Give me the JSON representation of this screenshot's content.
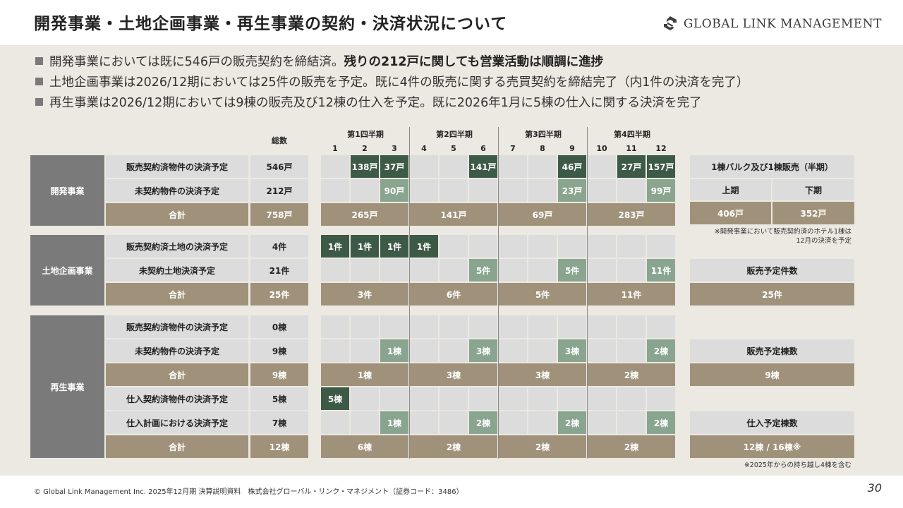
{
  "header": {
    "title": "開発事業・土地企画事業・再生事業の契約・決済状況について",
    "logo_text": "GLOBAL LINK MANAGEMENT"
  },
  "bullets": [
    {
      "normal": "開発事業においては既に546戸の販売契約を締結済。",
      "bold": "残りの212戸に関しても営業活動は順調に進捗"
    },
    {
      "normal": "土地企画事業は2026/12期においては25件の販売を予定。既に4件の販売に関する売買契約を締結完了（内1件の決済を完了）",
      "bold": ""
    },
    {
      "normal": "再生事業は2026/12期においては9棟の販売及び12棟の仕入を予定。既に2026年1月に5棟の仕入に関する決済を完了",
      "bold": ""
    }
  ],
  "table_header": {
    "total_label": "総数",
    "quarters": [
      "第1四半期",
      "第2四半期",
      "第3四半期",
      "第4四半期"
    ],
    "months": [
      "1",
      "2",
      "3",
      "4",
      "5",
      "6",
      "7",
      "8",
      "9",
      "10",
      "11",
      "12"
    ]
  },
  "sections": [
    {
      "name": "開発事業",
      "rows": [
        {
          "label": "販売契約済物件の決済予定",
          "total": "546戸",
          "kind": "dark",
          "months": [
            "",
            "138戸",
            "37戸",
            "",
            "",
            "141戸",
            "",
            "",
            "46戸",
            "",
            "27戸",
            "157戸"
          ]
        },
        {
          "label": "未契約物件の決済予定",
          "total": "212戸",
          "kind": "mid",
          "months": [
            "",
            "",
            "90戸",
            "",
            "",
            "",
            "",
            "",
            "23戸",
            "",
            "",
            "99戸"
          ]
        },
        {
          "label": "合計",
          "total": "758戸",
          "kind": "sum",
          "quarters": [
            "265戸",
            "141戸",
            "69戸",
            "283戸"
          ]
        }
      ]
    },
    {
      "name": "土地企画事業",
      "rows": [
        {
          "label": "販売契約済土地の決済予定",
          "total": "4件",
          "kind": "dark",
          "months": [
            "1件",
            "1件",
            "1件",
            "1件",
            "",
            "",
            "",
            "",
            "",
            "",
            "",
            ""
          ]
        },
        {
          "label": "未契約土地決済予定",
          "total": "21件",
          "kind": "mid",
          "months": [
            "",
            "",
            "",
            "",
            "",
            "5件",
            "",
            "",
            "5件",
            "",
            "",
            "11件"
          ]
        },
        {
          "label": "合計",
          "total": "25件",
          "kind": "sum",
          "quarters": [
            "3件",
            "6件",
            "5件",
            "11件"
          ]
        }
      ]
    },
    {
      "name": "再生事業",
      "rows": [
        {
          "label": "販売契約済物件の決済予定",
          "total": "0棟",
          "kind": "dark",
          "months": [
            "",
            "",
            "",
            "",
            "",
            "",
            "",
            "",
            "",
            "",
            "",
            ""
          ]
        },
        {
          "label": "未契約物件の決済予定",
          "total": "9棟",
          "kind": "mid",
          "months": [
            "",
            "",
            "1棟",
            "",
            "",
            "3棟",
            "",
            "",
            "3棟",
            "",
            "",
            "2棟"
          ]
        },
        {
          "label": "合計",
          "total": "9棟",
          "kind": "sum",
          "quarters": [
            "1棟",
            "3棟",
            "3棟",
            "2棟"
          ]
        },
        {
          "label": "仕入契約済物件の決済予定",
          "total": "5棟",
          "kind": "dark",
          "months": [
            "5棟",
            "",
            "",
            "",
            "",
            "",
            "",
            "",
            "",
            "",
            "",
            ""
          ]
        },
        {
          "label": "仕入計画における決済予定",
          "total": "7棟",
          "kind": "mid",
          "months": [
            "",
            "",
            "1棟",
            "",
            "",
            "2棟",
            "",
            "",
            "2棟",
            "",
            "",
            "2棟"
          ]
        },
        {
          "label": "合計",
          "total": "12棟",
          "kind": "sum",
          "quarters": [
            "6棟",
            "2棟",
            "2棟",
            "2棟"
          ]
        }
      ]
    }
  ],
  "side": {
    "bulk_title": "1棟バルク及び1棟販売（半期）",
    "first_half_label": "上期",
    "second_half_label": "下期",
    "first_half_value": "406戸",
    "second_half_value": "352戸",
    "bulk_note": "※開発事業において販売契約済のホテル1棟は\n12月の決済を予定",
    "land_title": "販売予定件数",
    "land_value": "25件",
    "regen_sales_title": "販売予定棟数",
    "regen_sales_value": "9棟",
    "regen_purchase_title": "仕入予定棟数",
    "regen_purchase_value": "12棟 / 16棟※",
    "regen_note": "※2025年からの持ち越し4棟を含む"
  },
  "footer": {
    "copyright": "© Global Link Management Inc. 2025年12月期 決算説明資料　株式会社グローバル・リンク・マネジメント（証券コード：3486）",
    "page": "30"
  },
  "colors": {
    "panel": "#ece9e2",
    "gray": "#7a7a7a",
    "light": "#dcdcdc",
    "tan": "#a0927a",
    "dark_green": "#3d5a46",
    "mid_green": "#8aa58f"
  }
}
